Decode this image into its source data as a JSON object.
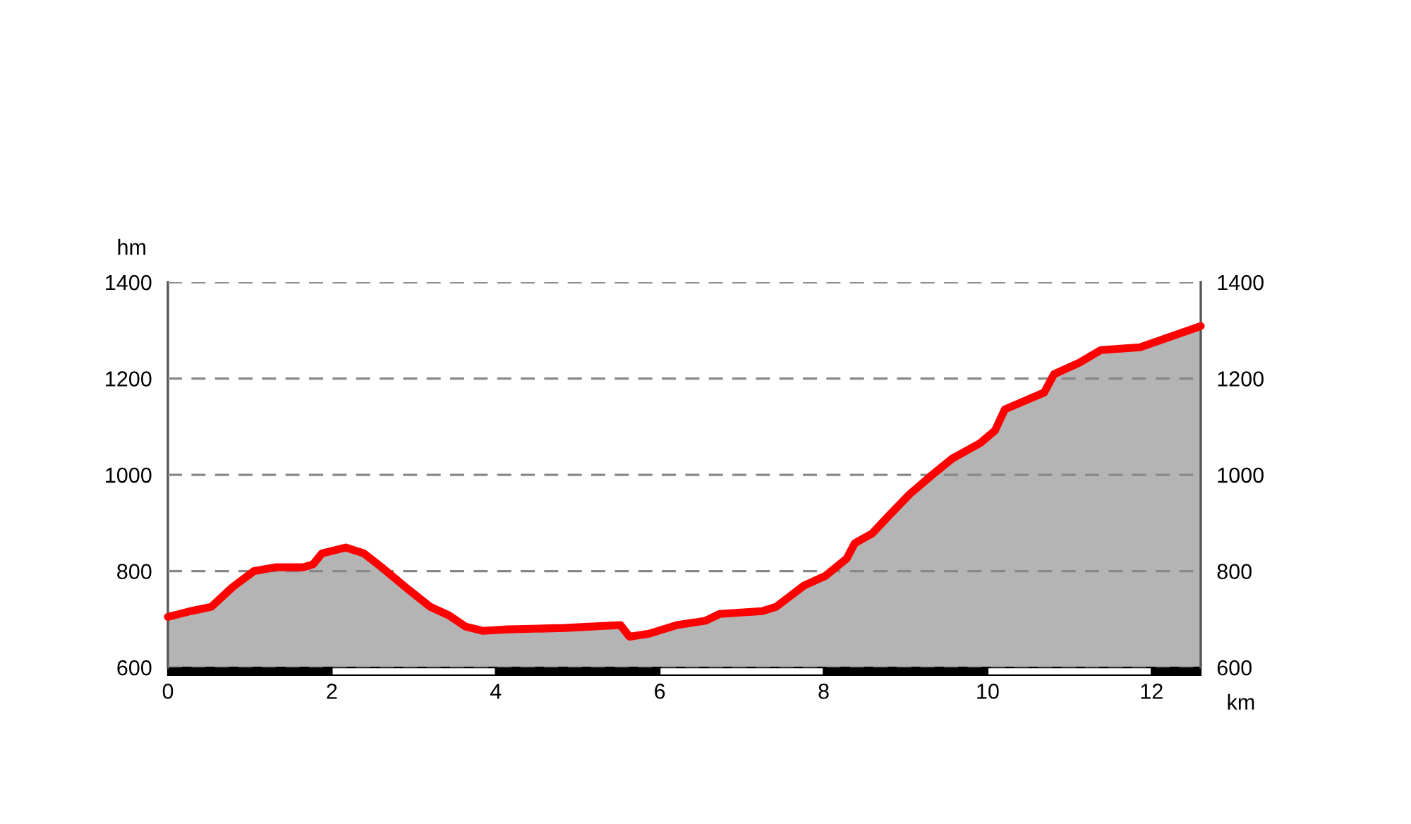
{
  "chart_data": {
    "type": "area",
    "xlabel": "km",
    "ylabel": "hm",
    "x": [
      0,
      0.28,
      0.53,
      0.79,
      1.05,
      1.31,
      1.65,
      1.77,
      1.88,
      2.17,
      2.39,
      2.63,
      2.94,
      3.2,
      3.43,
      3.63,
      3.84,
      4.15,
      4.84,
      5.52,
      5.63,
      5.87,
      6.21,
      6.56,
      6.73,
      7.25,
      7.42,
      7.76,
      8.02,
      8.28,
      8.38,
      8.59,
      8.8,
      9.05,
      9.31,
      9.57,
      9.91,
      10.09,
      10.21,
      10.69,
      10.81,
      11.12,
      11.38,
      11.86,
      12.6
    ],
    "series": [
      {
        "color": "#ff0000",
        "values": [
          705,
          717,
          726,
          767,
          800,
          808,
          808,
          814,
          837,
          849,
          837,
          805,
          761,
          726,
          708,
          685,
          676,
          679,
          682,
          688,
          664,
          670,
          688,
          697,
          711,
          717,
          726,
          770,
          790,
          826,
          858,
          878,
          916,
          960,
          998,
          1034,
          1066,
          1092,
          1136,
          1171,
          1209,
          1233,
          1259,
          1265,
          1309
        ]
      }
    ],
    "xlim": [
      0,
      12.6
    ],
    "xticks": [
      0,
      2,
      4,
      6,
      8,
      10,
      12
    ],
    "ylim": [
      600,
      1400
    ],
    "yticks": [
      600,
      800,
      1000,
      1200,
      1400
    ],
    "y2lim": [
      600,
      1400
    ],
    "y2ticks": [
      600,
      800,
      1000,
      1200,
      1400
    ],
    "grid": "y",
    "legend": false
  }
}
